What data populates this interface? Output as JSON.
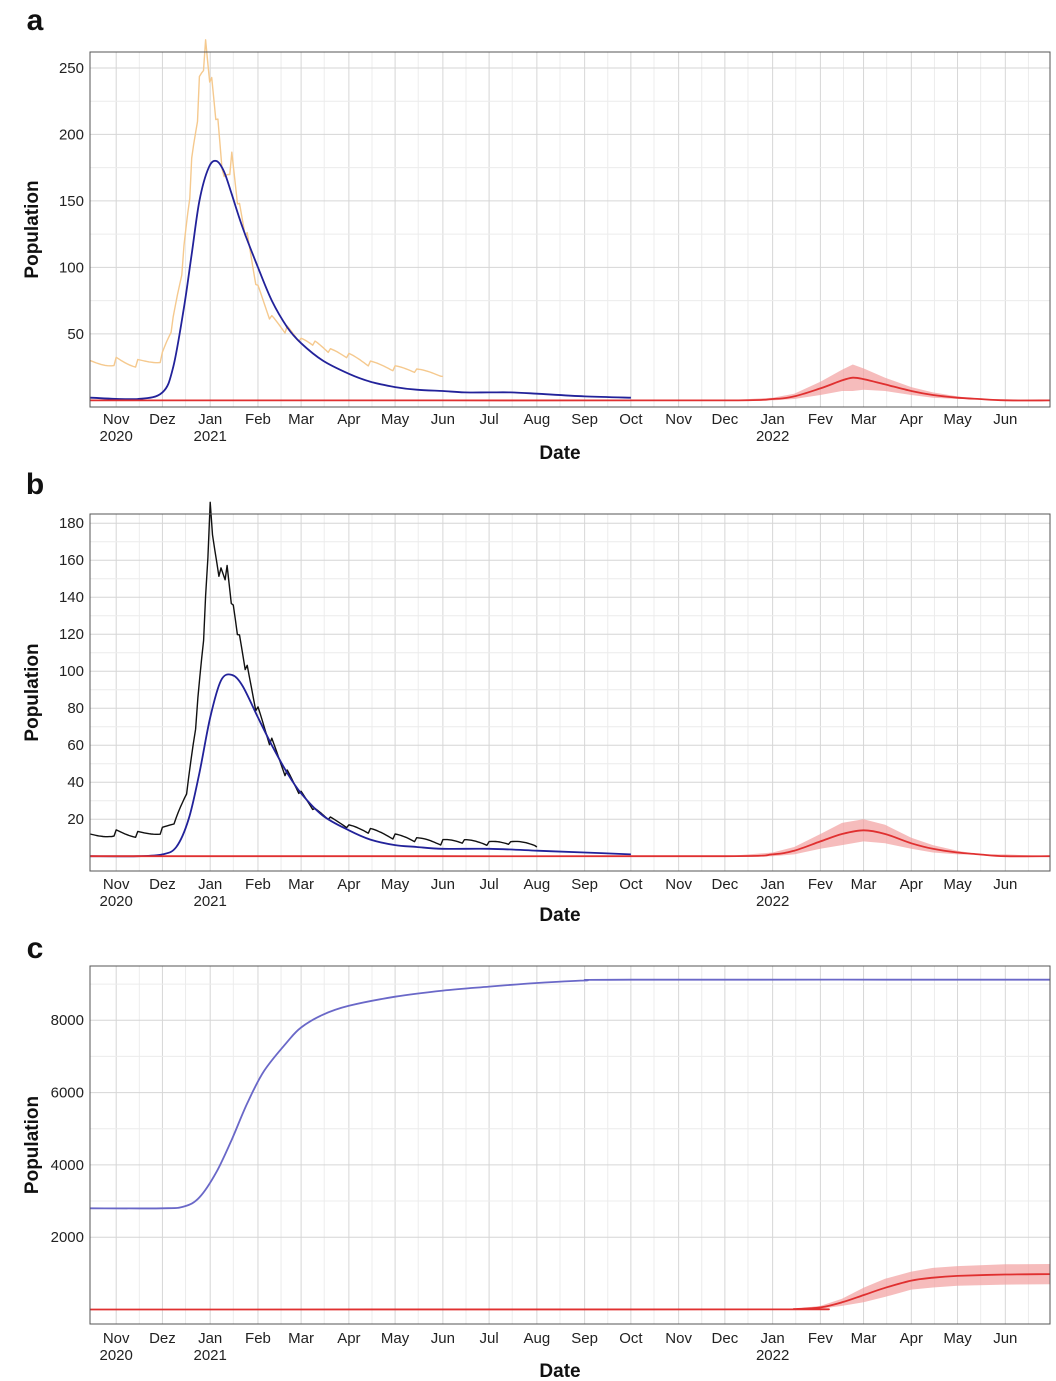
{
  "chart_data": [
    {
      "panel_label": "a",
      "type": "line",
      "xlabel": "Date",
      "ylabel": "Population",
      "x_range": [
        "2020-10-15",
        "2022-06-30"
      ],
      "ylim": [
        -5,
        262
      ],
      "yticks": [
        50,
        100,
        150,
        200,
        250
      ],
      "month_ticks": [
        "Nov",
        "Dez",
        "Jan",
        "Feb",
        "Mar",
        "Apr",
        "May",
        "Jun",
        "Jul",
        "Aug",
        "Sep",
        "Oct",
        "Nov",
        "Dec",
        "Jan",
        "Fev",
        "Mar",
        "Apr",
        "May",
        "Jun"
      ],
      "year_ticks": [
        {
          "label": "2020",
          "date": "2020-11-01"
        },
        {
          "label": "2021",
          "date": "2021-01-01"
        },
        {
          "label": "2022",
          "date": "2022-01-01"
        }
      ],
      "grid": true,
      "series": [
        {
          "color": "#f5c98e",
          "style": "observed",
          "x": [
            "2020-10-15",
            "2020-11-01",
            "2020-11-15",
            "2020-12-01",
            "2020-12-08",
            "2020-12-15",
            "2020-12-20",
            "2020-12-25",
            "2020-12-29",
            "2021-01-02",
            "2021-01-06",
            "2021-01-10",
            "2021-01-15",
            "2021-01-20",
            "2021-01-25",
            "2021-02-01",
            "2021-02-10",
            "2021-02-20",
            "2021-03-01",
            "2021-03-10",
            "2021-03-20",
            "2021-04-01",
            "2021-04-15",
            "2021-05-01",
            "2021-05-15",
            "2021-06-01"
          ],
          "y": [
            30,
            32,
            30,
            35,
            60,
            110,
            170,
            225,
            248,
            220,
            190,
            150,
            165,
            130,
            110,
            75,
            55,
            48,
            40,
            38,
            33,
            30,
            25,
            22,
            20,
            18
          ]
        },
        {
          "color": "#22229a",
          "style": "model",
          "x": [
            "2020-10-15",
            "2020-11-15",
            "2020-12-01",
            "2020-12-08",
            "2020-12-15",
            "2020-12-20",
            "2020-12-25",
            "2020-12-31",
            "2021-01-05",
            "2021-01-10",
            "2021-01-15",
            "2021-01-22",
            "2021-02-01",
            "2021-02-10",
            "2021-02-20",
            "2021-03-01",
            "2021-03-15",
            "2021-04-01",
            "2021-04-15",
            "2021-05-01",
            "2021-05-15",
            "2021-06-01",
            "2021-06-15",
            "2021-07-01",
            "2021-07-15",
            "2021-08-01",
            "2021-09-01",
            "2021-10-01"
          ],
          "y": [
            2,
            1,
            6,
            25,
            70,
            110,
            150,
            175,
            180,
            172,
            155,
            130,
            100,
            75,
            55,
            43,
            30,
            20,
            14,
            10,
            8,
            7,
            6,
            6,
            6,
            5,
            3,
            2
          ]
        },
        {
          "color": "#e03030",
          "style": "forecast",
          "band_color": "#f2a0a0",
          "x": [
            "2020-10-15",
            "2021-06-01",
            "2021-12-01",
            "2022-01-01",
            "2022-01-15",
            "2022-02-01",
            "2022-02-15",
            "2022-02-22",
            "2022-03-01",
            "2022-03-15",
            "2022-04-01",
            "2022-04-15",
            "2022-05-01",
            "2022-05-15",
            "2022-06-01",
            "2022-06-30"
          ],
          "y": [
            0,
            0,
            0,
            1,
            3,
            9,
            15,
            17,
            16,
            12,
            7,
            4,
            2,
            1,
            0,
            0
          ],
          "band": [
            0,
            0,
            0,
            2,
            5,
            14,
            23,
            27,
            24,
            17,
            10,
            6,
            3,
            1,
            1,
            0
          ]
        }
      ]
    },
    {
      "panel_label": "b",
      "type": "line",
      "xlabel": "Date",
      "ylabel": "Population",
      "x_range": [
        "2020-10-15",
        "2022-06-30"
      ],
      "ylim": [
        -8,
        185
      ],
      "yticks": [
        20,
        40,
        60,
        80,
        100,
        120,
        140,
        160,
        180
      ],
      "month_ticks": [
        "Nov",
        "Dez",
        "Jan",
        "Feb",
        "Mar",
        "Apr",
        "May",
        "Jun",
        "Jul",
        "Aug",
        "Sep",
        "Oct",
        "Nov",
        "Dec",
        "Jan",
        "Fev",
        "Mar",
        "Apr",
        "May",
        "Jun"
      ],
      "year_ticks": [
        {
          "label": "2020",
          "date": "2020-11-01"
        },
        {
          "label": "2021",
          "date": "2021-01-01"
        },
        {
          "label": "2022",
          "date": "2022-01-01"
        }
      ],
      "grid": true,
      "series": [
        {
          "color": "#111111",
          "style": "observed",
          "x": [
            "2020-10-15",
            "2020-11-01",
            "2020-11-15",
            "2020-12-01",
            "2020-12-10",
            "2020-12-18",
            "2020-12-24",
            "2020-12-29",
            "2021-01-01",
            "2021-01-04",
            "2021-01-08",
            "2021-01-12",
            "2021-01-16",
            "2021-01-20",
            "2021-01-25",
            "2021-02-01",
            "2021-02-10",
            "2021-02-20",
            "2021-03-01",
            "2021-03-10",
            "2021-03-20",
            "2021-04-01",
            "2021-04-15",
            "2021-05-01",
            "2021-05-15",
            "2021-06-01",
            "2021-06-15",
            "2021-07-01",
            "2021-07-15",
            "2021-08-01"
          ],
          "y": [
            12,
            14,
            13,
            15,
            20,
            40,
            80,
            130,
            175,
            150,
            140,
            140,
            120,
            105,
            90,
            70,
            55,
            40,
            30,
            22,
            18,
            14,
            12,
            9,
            7,
            6,
            6,
            5,
            5,
            5
          ]
        },
        {
          "color": "#22229a",
          "style": "model",
          "x": [
            "2020-10-15",
            "2020-11-15",
            "2020-12-01",
            "2020-12-10",
            "2020-12-18",
            "2020-12-25",
            "2021-01-01",
            "2021-01-08",
            "2021-01-15",
            "2021-01-22",
            "2021-02-01",
            "2021-02-10",
            "2021-02-20",
            "2021-03-01",
            "2021-03-15",
            "2021-04-01",
            "2021-04-15",
            "2021-05-01",
            "2021-05-15",
            "2021-06-01",
            "2021-07-01",
            "2021-08-01",
            "2021-09-01",
            "2021-10-01"
          ],
          "y": [
            0,
            0,
            1,
            5,
            20,
            45,
            75,
            95,
            98,
            92,
            75,
            60,
            45,
            34,
            22,
            14,
            9,
            6,
            5,
            4,
            4,
            3,
            2,
            1
          ]
        },
        {
          "color": "#e03030",
          "style": "forecast",
          "band_color": "#f2a0a0",
          "x": [
            "2020-10-15",
            "2021-06-01",
            "2021-12-01",
            "2022-01-01",
            "2022-01-15",
            "2022-02-01",
            "2022-02-15",
            "2022-03-01",
            "2022-03-15",
            "2022-04-01",
            "2022-04-15",
            "2022-05-01",
            "2022-05-15",
            "2022-06-01",
            "2022-06-30"
          ],
          "y": [
            0,
            0,
            0,
            1,
            3,
            8,
            12,
            14,
            12,
            7,
            4,
            2,
            1,
            0,
            0
          ],
          "band": [
            0,
            0,
            0,
            2,
            5,
            12,
            18,
            20,
            17,
            10,
            6,
            3,
            1,
            1,
            0
          ]
        }
      ]
    },
    {
      "panel_label": "c",
      "type": "line",
      "xlabel": "Date",
      "ylabel": "Population",
      "x_range": [
        "2020-10-15",
        "2022-06-30"
      ],
      "ylim": [
        -400,
        9500
      ],
      "yticks": [
        2000,
        4000,
        6000,
        8000
      ],
      "month_ticks": [
        "Nov",
        "Dez",
        "Jan",
        "Feb",
        "Mar",
        "Apr",
        "May",
        "Jun",
        "Jul",
        "Aug",
        "Sep",
        "Oct",
        "Nov",
        "Dec",
        "Jan",
        "Fev",
        "Mar",
        "Apr",
        "May",
        "Jun"
      ],
      "year_ticks": [
        {
          "label": "2020",
          "date": "2020-11-01"
        },
        {
          "label": "2021",
          "date": "2021-01-01"
        },
        {
          "label": "2022",
          "date": "2022-01-01"
        }
      ],
      "grid": true,
      "series": [
        {
          "color": "#6a68c8",
          "style": "model",
          "x": [
            "2020-10-15",
            "2020-12-01",
            "2020-12-15",
            "2020-12-25",
            "2021-01-05",
            "2021-01-15",
            "2021-01-25",
            "2021-02-05",
            "2021-02-20",
            "2021-03-01",
            "2021-03-15",
            "2021-04-01",
            "2021-05-01",
            "2021-06-01",
            "2021-07-01",
            "2021-08-01",
            "2021-09-01",
            "2021-10-01",
            "2022-06-30"
          ],
          "y": [
            2800,
            2800,
            2850,
            3100,
            3800,
            4700,
            5700,
            6600,
            7400,
            7800,
            8150,
            8400,
            8650,
            8820,
            8930,
            9030,
            9100,
            9120,
            9120
          ]
        },
        {
          "color": "#e03030",
          "style": "forecast",
          "band_color": "#f2a0a0",
          "x": [
            "2020-10-15",
            "2022-01-01",
            "2022-01-15",
            "2022-02-01",
            "2022-02-15",
            "2022-03-01",
            "2022-03-15",
            "2022-04-01",
            "2022-04-15",
            "2022-05-01",
            "2022-06-01",
            "2022-06-30"
          ],
          "y": [
            0,
            5,
            15,
            60,
            200,
            400,
            600,
            800,
            880,
            930,
            970,
            980
          ],
          "band": [
            0,
            5,
            20,
            100,
            300,
            600,
            850,
            1050,
            1150,
            1200,
            1250,
            1260
          ]
        }
      ]
    }
  ]
}
